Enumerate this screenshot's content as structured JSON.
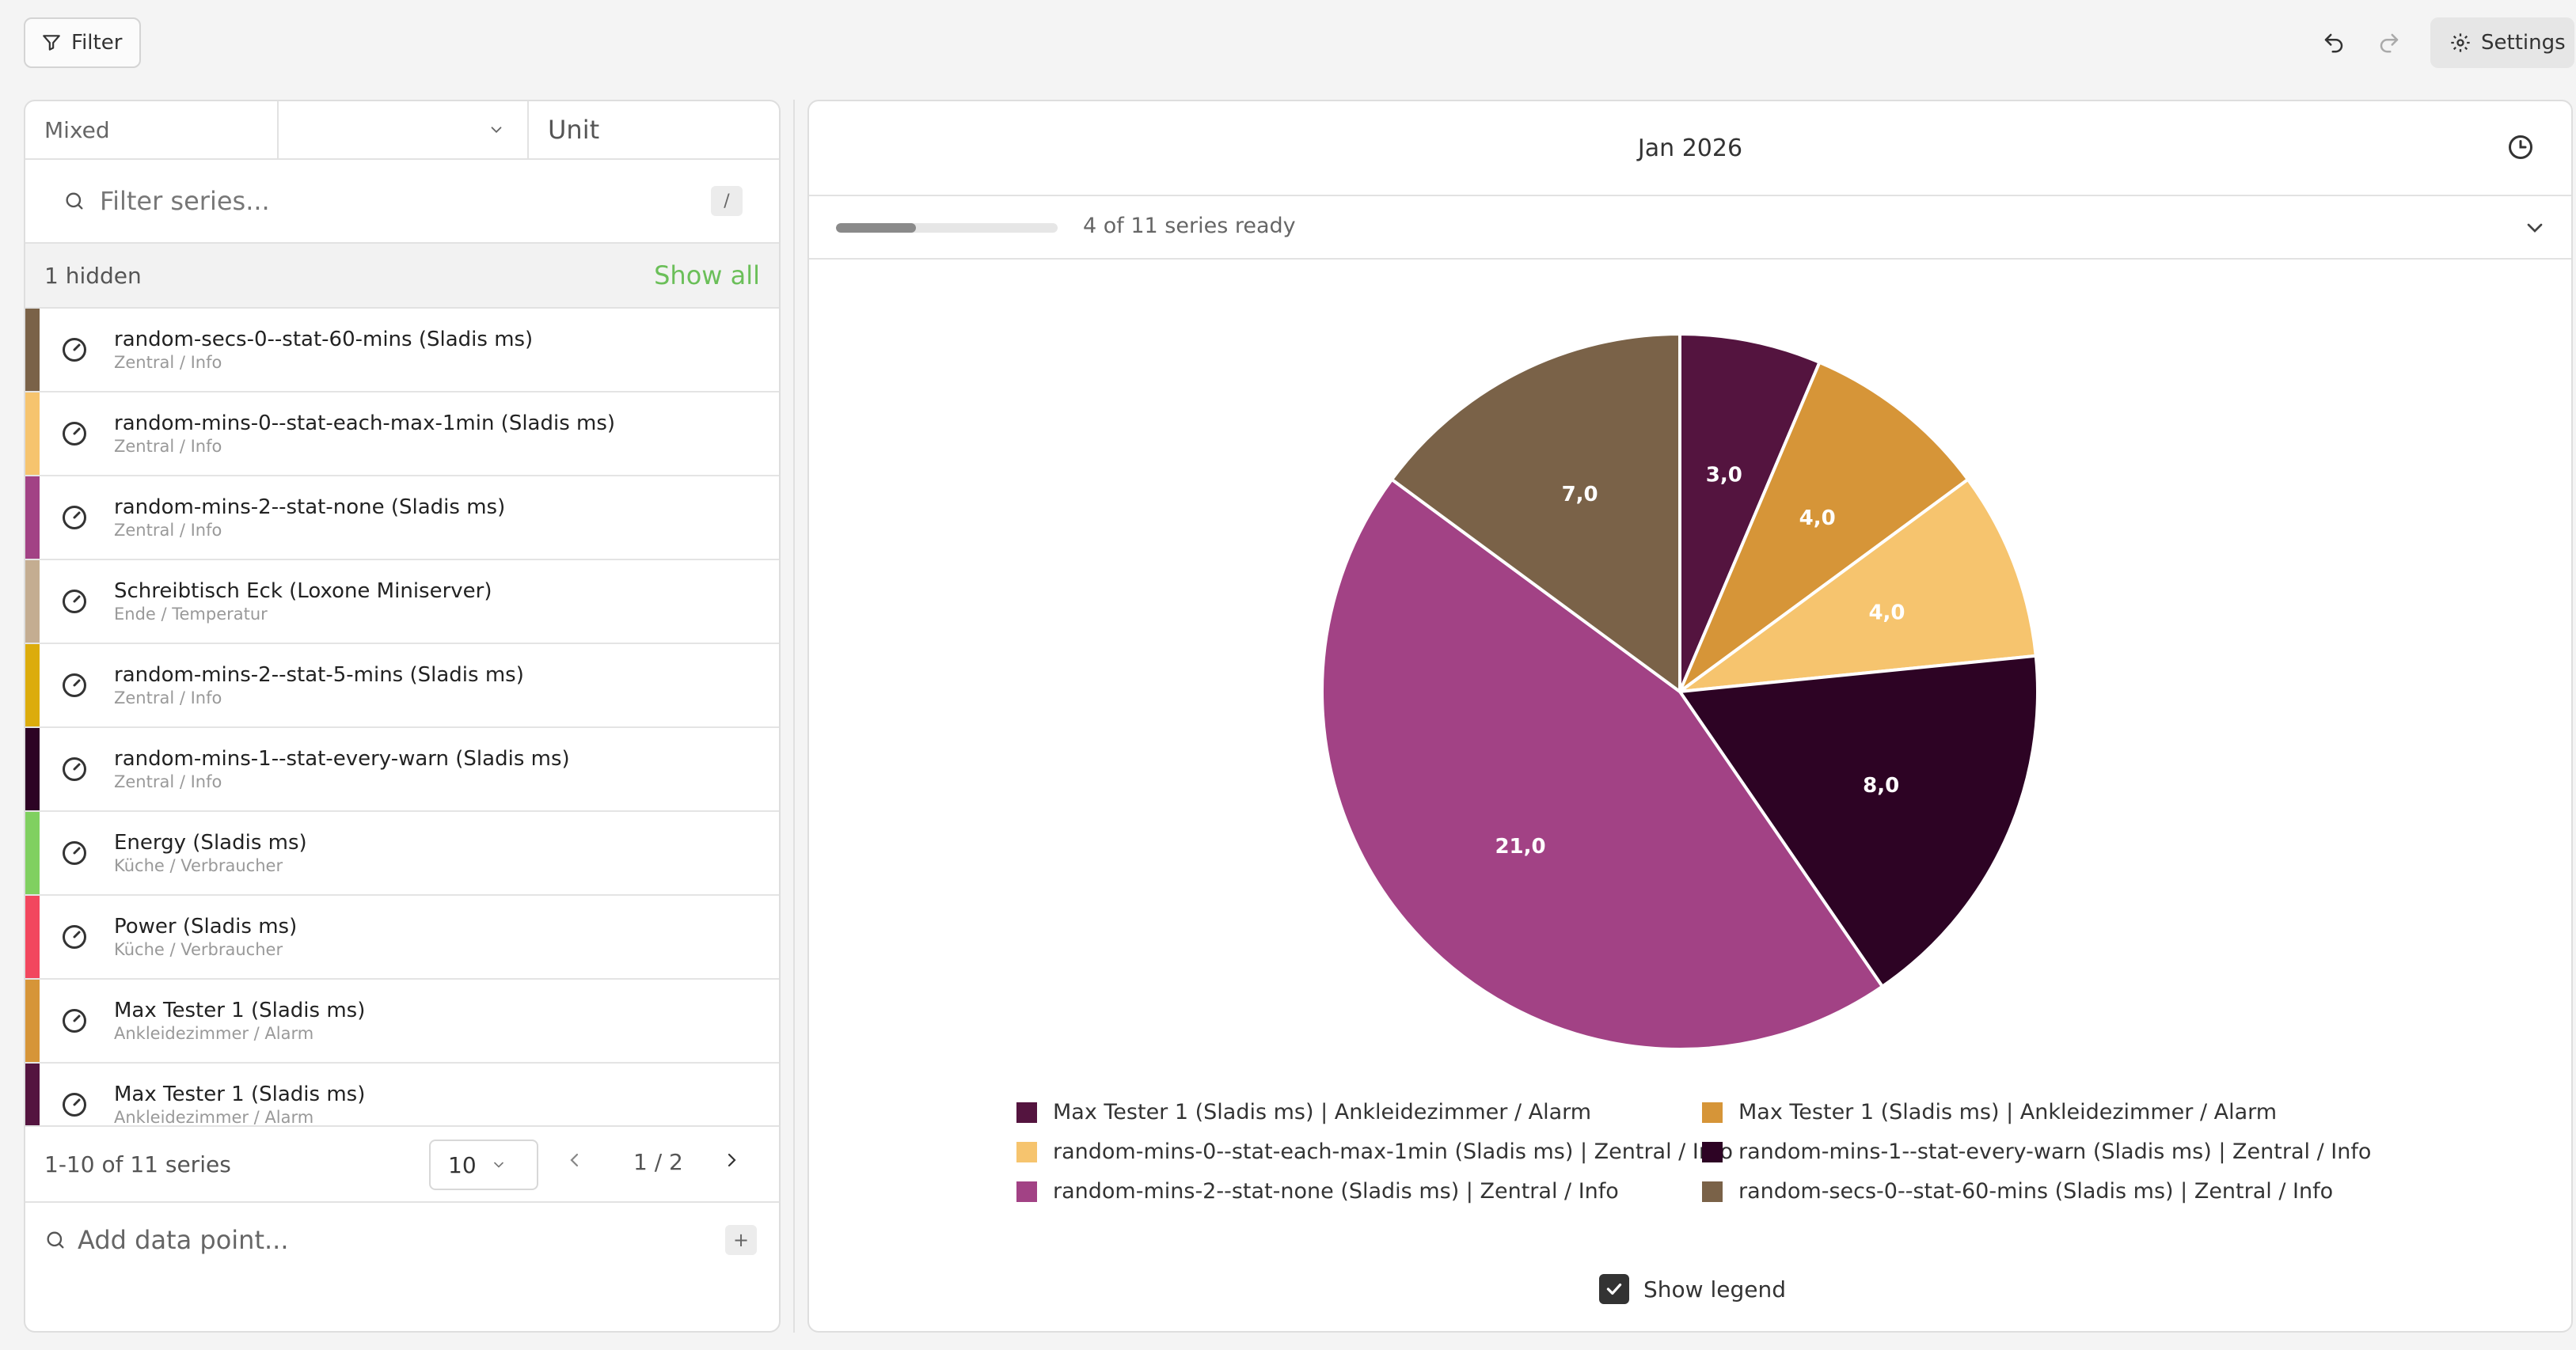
{
  "toolbar": {
    "filter_label": "Filter",
    "settings_label": "Settings"
  },
  "left_panel": {
    "type_select": "Mixed",
    "type_dropdown_value": "",
    "unit_placeholder": "Unit",
    "search_placeholder": "Filter series...",
    "search_shortcut": "/",
    "hidden_count": "1 hidden",
    "show_all": "Show all",
    "series": [
      {
        "name": "random-secs-0--stat-60-mins (Sladis ms)",
        "path": "Zentral / Info",
        "color": "#7a6248"
      },
      {
        "name": "random-mins-0--stat-each-max-1min (Sladis ms)",
        "path": "Zentral / Info",
        "color": "#f6c46e"
      },
      {
        "name": "random-mins-2--stat-none (Sladis ms)",
        "path": "Zentral / Info",
        "color": "#a24285"
      },
      {
        "name": "Schreibtisch Eck (Loxone Miniserver)",
        "path": "Ende / Temperatur",
        "color": "#c4ad91"
      },
      {
        "name": "random-mins-2--stat-5-mins (Sladis ms)",
        "path": "Zentral / Info",
        "color": "#dcac0c"
      },
      {
        "name": "random-mins-1--stat-every-warn (Sladis ms)",
        "path": "Zentral / Info",
        "color": "#2d0324"
      },
      {
        "name": "Energy (Sladis ms)",
        "path": "Küche / Verbraucher",
        "color": "#80d060"
      },
      {
        "name": "Power (Sladis ms)",
        "path": "Küche / Verbraucher",
        "color": "#f2475e"
      },
      {
        "name": "Max Tester 1 (Sladis ms)",
        "path": "Ankleidezimmer / Alarm",
        "color": "#d69538"
      },
      {
        "name": "Max Tester 1 (Sladis ms)",
        "path": "Ankleidezimmer / Alarm",
        "color": "#54143f"
      }
    ],
    "pager": {
      "range": "1-10 of 11 series",
      "page_size": "10",
      "page": "1 / 2"
    },
    "add_placeholder": "Add data point...",
    "add_shortcut": "+"
  },
  "right_panel": {
    "title": "Jan 2026",
    "progress_text": "4 of 11 series ready",
    "progress_fraction": 0.36,
    "show_legend_label": "Show legend",
    "show_legend_checked": true
  },
  "chart_data": {
    "type": "pie",
    "title": "Jan 2026",
    "slices": [
      {
        "label": "Max Tester 1 (Sladis ms) | Ankleidezimmer / Alarm",
        "value": 3.0,
        "display": "3,0",
        "color": "#54143f"
      },
      {
        "label": "Max Tester 1 (Sladis ms) | Ankleidezimmer / Alarm",
        "value": 4.0,
        "display": "4,0",
        "color": "#d69538"
      },
      {
        "label": "random-mins-0--stat-each-max-1min (Sladis ms) | Zentral / Info",
        "value": 4.0,
        "display": "4,0",
        "color": "#f6c46e"
      },
      {
        "label": "random-mins-1--stat-every-warn (Sladis ms) | Zentral / Info",
        "value": 8.0,
        "display": "8,0",
        "color": "#2d0324"
      },
      {
        "label": "random-mins-2--stat-none (Sladis ms) | Zentral / Info",
        "value": 21.0,
        "display": "21,0",
        "color": "#a24285"
      },
      {
        "label": "random-secs-0--stat-60-mins (Sladis ms) | Zentral / Info",
        "value": 7.0,
        "display": "7,0",
        "color": "#7a6248"
      }
    ],
    "legend": "bottom"
  }
}
